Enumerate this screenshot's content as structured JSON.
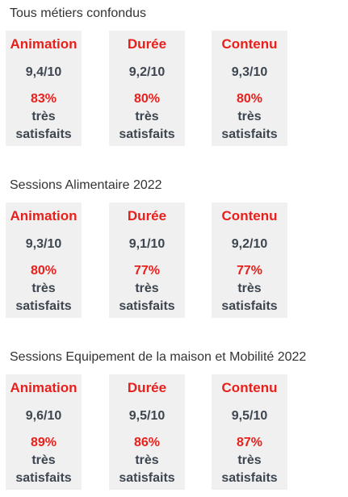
{
  "colors": {
    "accent_red": "#e8201c",
    "text_dark": "#3d4650",
    "card_bg": "#f0f0f0"
  },
  "sections": [
    {
      "title": "Tous métiers confondus",
      "cards": [
        {
          "title": "Animation",
          "score": "9,4/10",
          "pct": "83%",
          "line1": "très",
          "line2": "satisfaits"
        },
        {
          "title": "Durée",
          "score": "9,2/10",
          "pct": "80%",
          "line1": "très",
          "line2": "satisfaits"
        },
        {
          "title": "Contenu",
          "score": "9,3/10",
          "pct": "80%",
          "line1": "très",
          "line2": "satisfaits"
        }
      ]
    },
    {
      "title": "Sessions Alimentaire 2022",
      "cards": [
        {
          "title": "Animation",
          "score": "9,3/10",
          "pct": "80%",
          "line1": "très",
          "line2": "satisfaits"
        },
        {
          "title": "Durée",
          "score": "9,1/10",
          "pct": "77%",
          "line1": "très",
          "line2": "satisfaits"
        },
        {
          "title": "Contenu",
          "score": "9,2/10",
          "pct": "77%",
          "line1": "très",
          "line2": "satisfaits"
        }
      ]
    },
    {
      "title": "Sessions Equipement de la maison et Mobilité 2022",
      "cards": [
        {
          "title": "Animation",
          "score": "9,6/10",
          "pct": "89%",
          "line1": "très",
          "line2": "satisfaits"
        },
        {
          "title": "Durée",
          "score": "9,5/10",
          "pct": "86%",
          "line1": "très",
          "line2": "satisfaits"
        },
        {
          "title": "Contenu",
          "score": "9,5/10",
          "pct": "87%",
          "line1": "très",
          "line2": "satisfaits"
        }
      ]
    }
  ]
}
